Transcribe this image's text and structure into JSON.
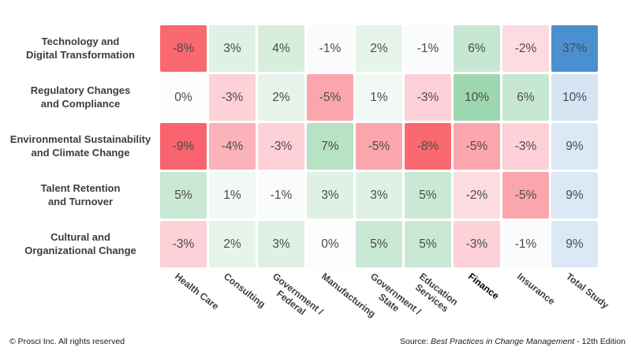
{
  "chart_data": {
    "type": "heatmap",
    "rows": [
      {
        "label_lines": [
          "Technology and",
          "Digital Transformation"
        ]
      },
      {
        "label_lines": [
          "Regulatory Changes",
          "and Compliance"
        ]
      },
      {
        "label_lines": [
          "Environmental Sustainability",
          "and Climate Change"
        ]
      },
      {
        "label_lines": [
          "Talent Retention",
          "and Turnover"
        ]
      },
      {
        "label_lines": [
          "Cultural and",
          "Organizational Change"
        ]
      }
    ],
    "columns": [
      {
        "label_lines": [
          "Health Care"
        ],
        "bold": false
      },
      {
        "label_lines": [
          "Consulting"
        ],
        "bold": false
      },
      {
        "label_lines": [
          "Government /",
          "Federal"
        ],
        "bold": false
      },
      {
        "label_lines": [
          "Manufacturing"
        ],
        "bold": false
      },
      {
        "label_lines": [
          "Government /",
          "State"
        ],
        "bold": false
      },
      {
        "label_lines": [
          "Education",
          "Services"
        ],
        "bold": false
      },
      {
        "label_lines": [
          "Finance"
        ],
        "bold": true
      },
      {
        "label_lines": [
          "Insurance"
        ],
        "bold": false
      },
      {
        "label_lines": [
          "Total Study"
        ],
        "bold": false
      }
    ],
    "values": [
      [
        -8,
        3,
        4,
        -1,
        2,
        -1,
        6,
        -2,
        37
      ],
      [
        0,
        -3,
        2,
        -5,
        1,
        -3,
        10,
        6,
        10
      ],
      [
        -9,
        -4,
        -3,
        7,
        -5,
        -8,
        -5,
        -3,
        9
      ],
      [
        5,
        1,
        -1,
        3,
        3,
        5,
        -2,
        -5,
        9
      ],
      [
        -3,
        2,
        3,
        0,
        5,
        5,
        -3,
        -1,
        9
      ]
    ],
    "value_suffix": "%",
    "cell_colors": [
      [
        "#f9696f",
        "#dff1e5",
        "#d7eedd",
        "#fafbfd",
        "#e7f4ec",
        "#fafbfd",
        "#c6e8d2",
        "#fcdce1",
        "#4a90d0"
      ],
      [
        "#fdfdfe",
        "#fdd1d7",
        "#e7f4ec",
        "#fba6ad",
        "#f2f9f5",
        "#fdd1d7",
        "#9dd7b0",
        "#c6e8d2",
        "#d7e4f4"
      ],
      [
        "#f9636d",
        "#fbb2b9",
        "#fdd1d7",
        "#b7e2c4",
        "#fba6ad",
        "#f9696f",
        "#fba6ad",
        "#fdd1d7",
        "#dbe8f6"
      ],
      [
        "#c9e9d4",
        "#f2f9f5",
        "#fafbfd",
        "#dff1e5",
        "#dff1e5",
        "#c9e9d4",
        "#fcdce1",
        "#fba6ad",
        "#dbe8f6"
      ],
      [
        "#fdd1d7",
        "#e7f4ec",
        "#dff1e5",
        "#fdfdfe",
        "#c9e9d4",
        "#c9e9d4",
        "#fdd1d7",
        "#fafbfd",
        "#dbe8f6"
      ]
    ],
    "colors": {
      "negative_max": "#f9636d",
      "positive_max": "#9dd7b0",
      "total_column_max": "#4a90d0",
      "cell_text": "#4a4a4a",
      "label_text": "#3d3d3d"
    },
    "layout": {
      "legend": "none",
      "grid": "off",
      "column_label_rotation_deg": 38
    }
  },
  "footer": {
    "copyright": "© Prosci Inc. All rights reserved",
    "source_prefix": "Source: ",
    "source_title": "Best Practices in Change Management",
    "source_suffix": " - 12th Edition"
  }
}
